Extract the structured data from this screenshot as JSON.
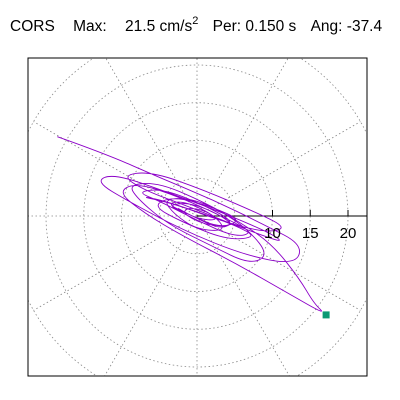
{
  "header": {
    "station": "CORS",
    "max_label": "Max:",
    "max_value": "21.5",
    "max_unit": "cm/s",
    "max_unit_exp": "2",
    "per_label": "Per:",
    "per_value": "0.150 s",
    "ang_label": "Ang:",
    "ang_value": "-37.4"
  },
  "colors": {
    "trace": "#8c00c8",
    "peak_marker": "#0a9a74",
    "grid": "#888888",
    "axis": "#000000"
  },
  "chart_data": {
    "type": "line",
    "subtype": "polar-orbit",
    "title": "",
    "xlabel": "",
    "ylabel": "",
    "radial_ticks": [
      "10",
      "15",
      "20"
    ],
    "radial_tick_values": [
      10,
      15,
      20
    ],
    "grid_rings": [
      5,
      10,
      15,
      20,
      25
    ],
    "grid_spokes_deg": [
      0,
      30,
      60,
      90,
      120,
      150,
      180,
      210,
      240,
      270,
      300,
      330
    ],
    "xlim": [
      -24,
      24
    ],
    "ylim": [
      -24,
      24
    ],
    "peak": {
      "x": 17.1,
      "y": -13.1,
      "magnitude": 21.5,
      "angle_deg": -37.4
    },
    "series": [
      {
        "values_xy": [
          [
            -18.5,
            10.5
          ],
          [
            -12,
            8.2
          ],
          [
            -5,
            5.1
          ],
          [
            2,
            2.2
          ],
          [
            9,
            -1.2
          ],
          [
            14,
            -3.8
          ],
          [
            13,
            -6.5
          ],
          [
            6,
            -5.1
          ],
          [
            -2,
            -1.8
          ],
          [
            -9,
            1.9
          ],
          [
            -13.5,
            4.6
          ],
          [
            -11,
            5.6
          ],
          [
            -4,
            3.2
          ],
          [
            4,
            0.2
          ],
          [
            10,
            -2.4
          ],
          [
            11.5,
            -3.6
          ],
          [
            6,
            -1.6
          ],
          [
            -1,
            1.2
          ],
          [
            -7,
            3.4
          ],
          [
            -10,
            5.4
          ],
          [
            -6,
            5.9
          ],
          [
            1,
            3.4
          ],
          [
            8,
            0.4
          ],
          [
            12,
            -1.6
          ],
          [
            9,
            -2.2
          ],
          [
            3,
            -0.6
          ],
          [
            -3,
            1.6
          ],
          [
            -7.5,
            2.6
          ],
          [
            -5,
            2.2
          ],
          [
            0,
            0.6
          ],
          [
            5,
            -1.2
          ],
          [
            8,
            -2.8
          ],
          [
            4,
            -3.2
          ],
          [
            -2,
            -0.8
          ],
          [
            -6,
            1.4
          ],
          [
            -3,
            2.6
          ],
          [
            2,
            1.2
          ],
          [
            6,
            -0.6
          ],
          [
            3,
            -1.6
          ],
          [
            -1,
            0.2
          ],
          [
            -4,
            1.4
          ],
          [
            -1,
            1.8
          ],
          [
            3,
            0.2
          ],
          [
            5,
            -1.4
          ],
          [
            1,
            -1.2
          ],
          [
            -2,
            0.4
          ],
          [
            -1,
            1.2
          ],
          [
            2,
            0.4
          ],
          [
            4,
            -2.0
          ],
          [
            0,
            -1.8
          ],
          [
            -3,
            0.2
          ],
          [
            -4.5,
            2.2
          ],
          [
            -1,
            2.4
          ],
          [
            3,
            0.8
          ],
          [
            7,
            -2.0
          ],
          [
            9.5,
            -5.2
          ],
          [
            7,
            -6.4
          ],
          [
            2,
            -4.0
          ],
          [
            -4,
            -1.0
          ],
          [
            -8,
            2.4
          ],
          [
            -9,
            4.2
          ],
          [
            -5,
            4.4
          ],
          [
            1,
            1.8
          ],
          [
            6,
            -1.0
          ],
          [
            10,
            -3.8
          ],
          [
            13.5,
            -8.2
          ],
          [
            15.5,
            -11.6
          ],
          [
            17.1,
            -13.1
          ],
          [
            12,
            -10.2
          ],
          [
            5,
            -6.2
          ],
          [
            -2,
            -2.6
          ],
          [
            -7,
            0.4
          ],
          [
            -10.5,
            3.2
          ],
          [
            -8,
            4.4
          ],
          [
            -2,
            2.4
          ],
          [
            4,
            -0.4
          ],
          [
            7.5,
            -2.2
          ],
          [
            5,
            -2.8
          ],
          [
            0,
            -0.6
          ],
          [
            -5,
            2.0
          ],
          [
            -8,
            3.2
          ],
          [
            -4.5,
            3.6
          ],
          [
            1,
            1.4
          ],
          [
            5,
            -0.8
          ],
          [
            3,
            -1.8
          ],
          [
            -1,
            0.2
          ],
          [
            -4,
            1.6
          ],
          [
            -2,
            2.0
          ],
          [
            1,
            0.8
          ],
          [
            3,
            -0.6
          ],
          [
            0,
            -0.4
          ],
          [
            -2.5,
            1.0
          ]
        ]
      }
    ]
  }
}
